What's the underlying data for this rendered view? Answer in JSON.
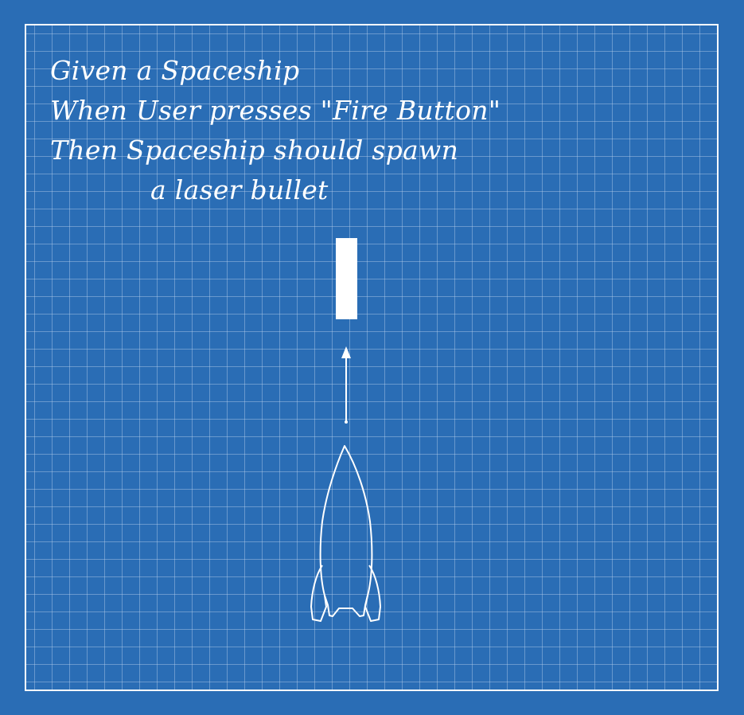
{
  "story": {
    "given": "Given a Spaceship",
    "when": "When User presses \"Fire Button\"",
    "then": "Then Spaceship should spawn",
    "then_cont": "a laser bullet"
  },
  "colors": {
    "background": "#2a6db5",
    "grid": "#b4cdeb",
    "ink": "#ffffff"
  }
}
